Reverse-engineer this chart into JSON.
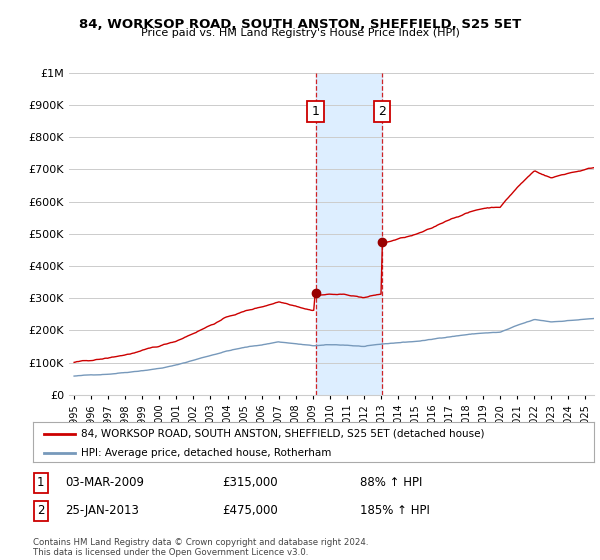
{
  "title": "84, WORKSOP ROAD, SOUTH ANSTON, SHEFFIELD, S25 5ET",
  "subtitle": "Price paid vs. HM Land Registry's House Price Index (HPI)",
  "legend_label_red": "84, WORKSOP ROAD, SOUTH ANSTON, SHEFFIELD, S25 5ET (detached house)",
  "legend_label_blue": "HPI: Average price, detached house, Rotherham",
  "footnote": "Contains HM Land Registry data © Crown copyright and database right 2024.\nThis data is licensed under the Open Government Licence v3.0.",
  "transactions": [
    {
      "num": 1,
      "date": "03-MAR-2009",
      "price": "£315,000",
      "hpi": "88% ↑ HPI",
      "year": 2009.17
    },
    {
      "num": 2,
      "date": "25-JAN-2013",
      "price": "£475,000",
      "hpi": "185% ↑ HPI",
      "year": 2013.07
    }
  ],
  "transaction_prices": [
    315000,
    475000
  ],
  "highlight_region": [
    2009.17,
    2013.07
  ],
  "ylim": [
    0,
    1000000
  ],
  "xlim_start": 1995,
  "xlim_end": 2025.5,
  "red_color": "#cc0000",
  "blue_color": "#7799bb",
  "highlight_color": "#ddeeff",
  "grid_color": "#cccccc",
  "background": "#ffffff",
  "marker_y": 880000,
  "dot_color": "#990000"
}
